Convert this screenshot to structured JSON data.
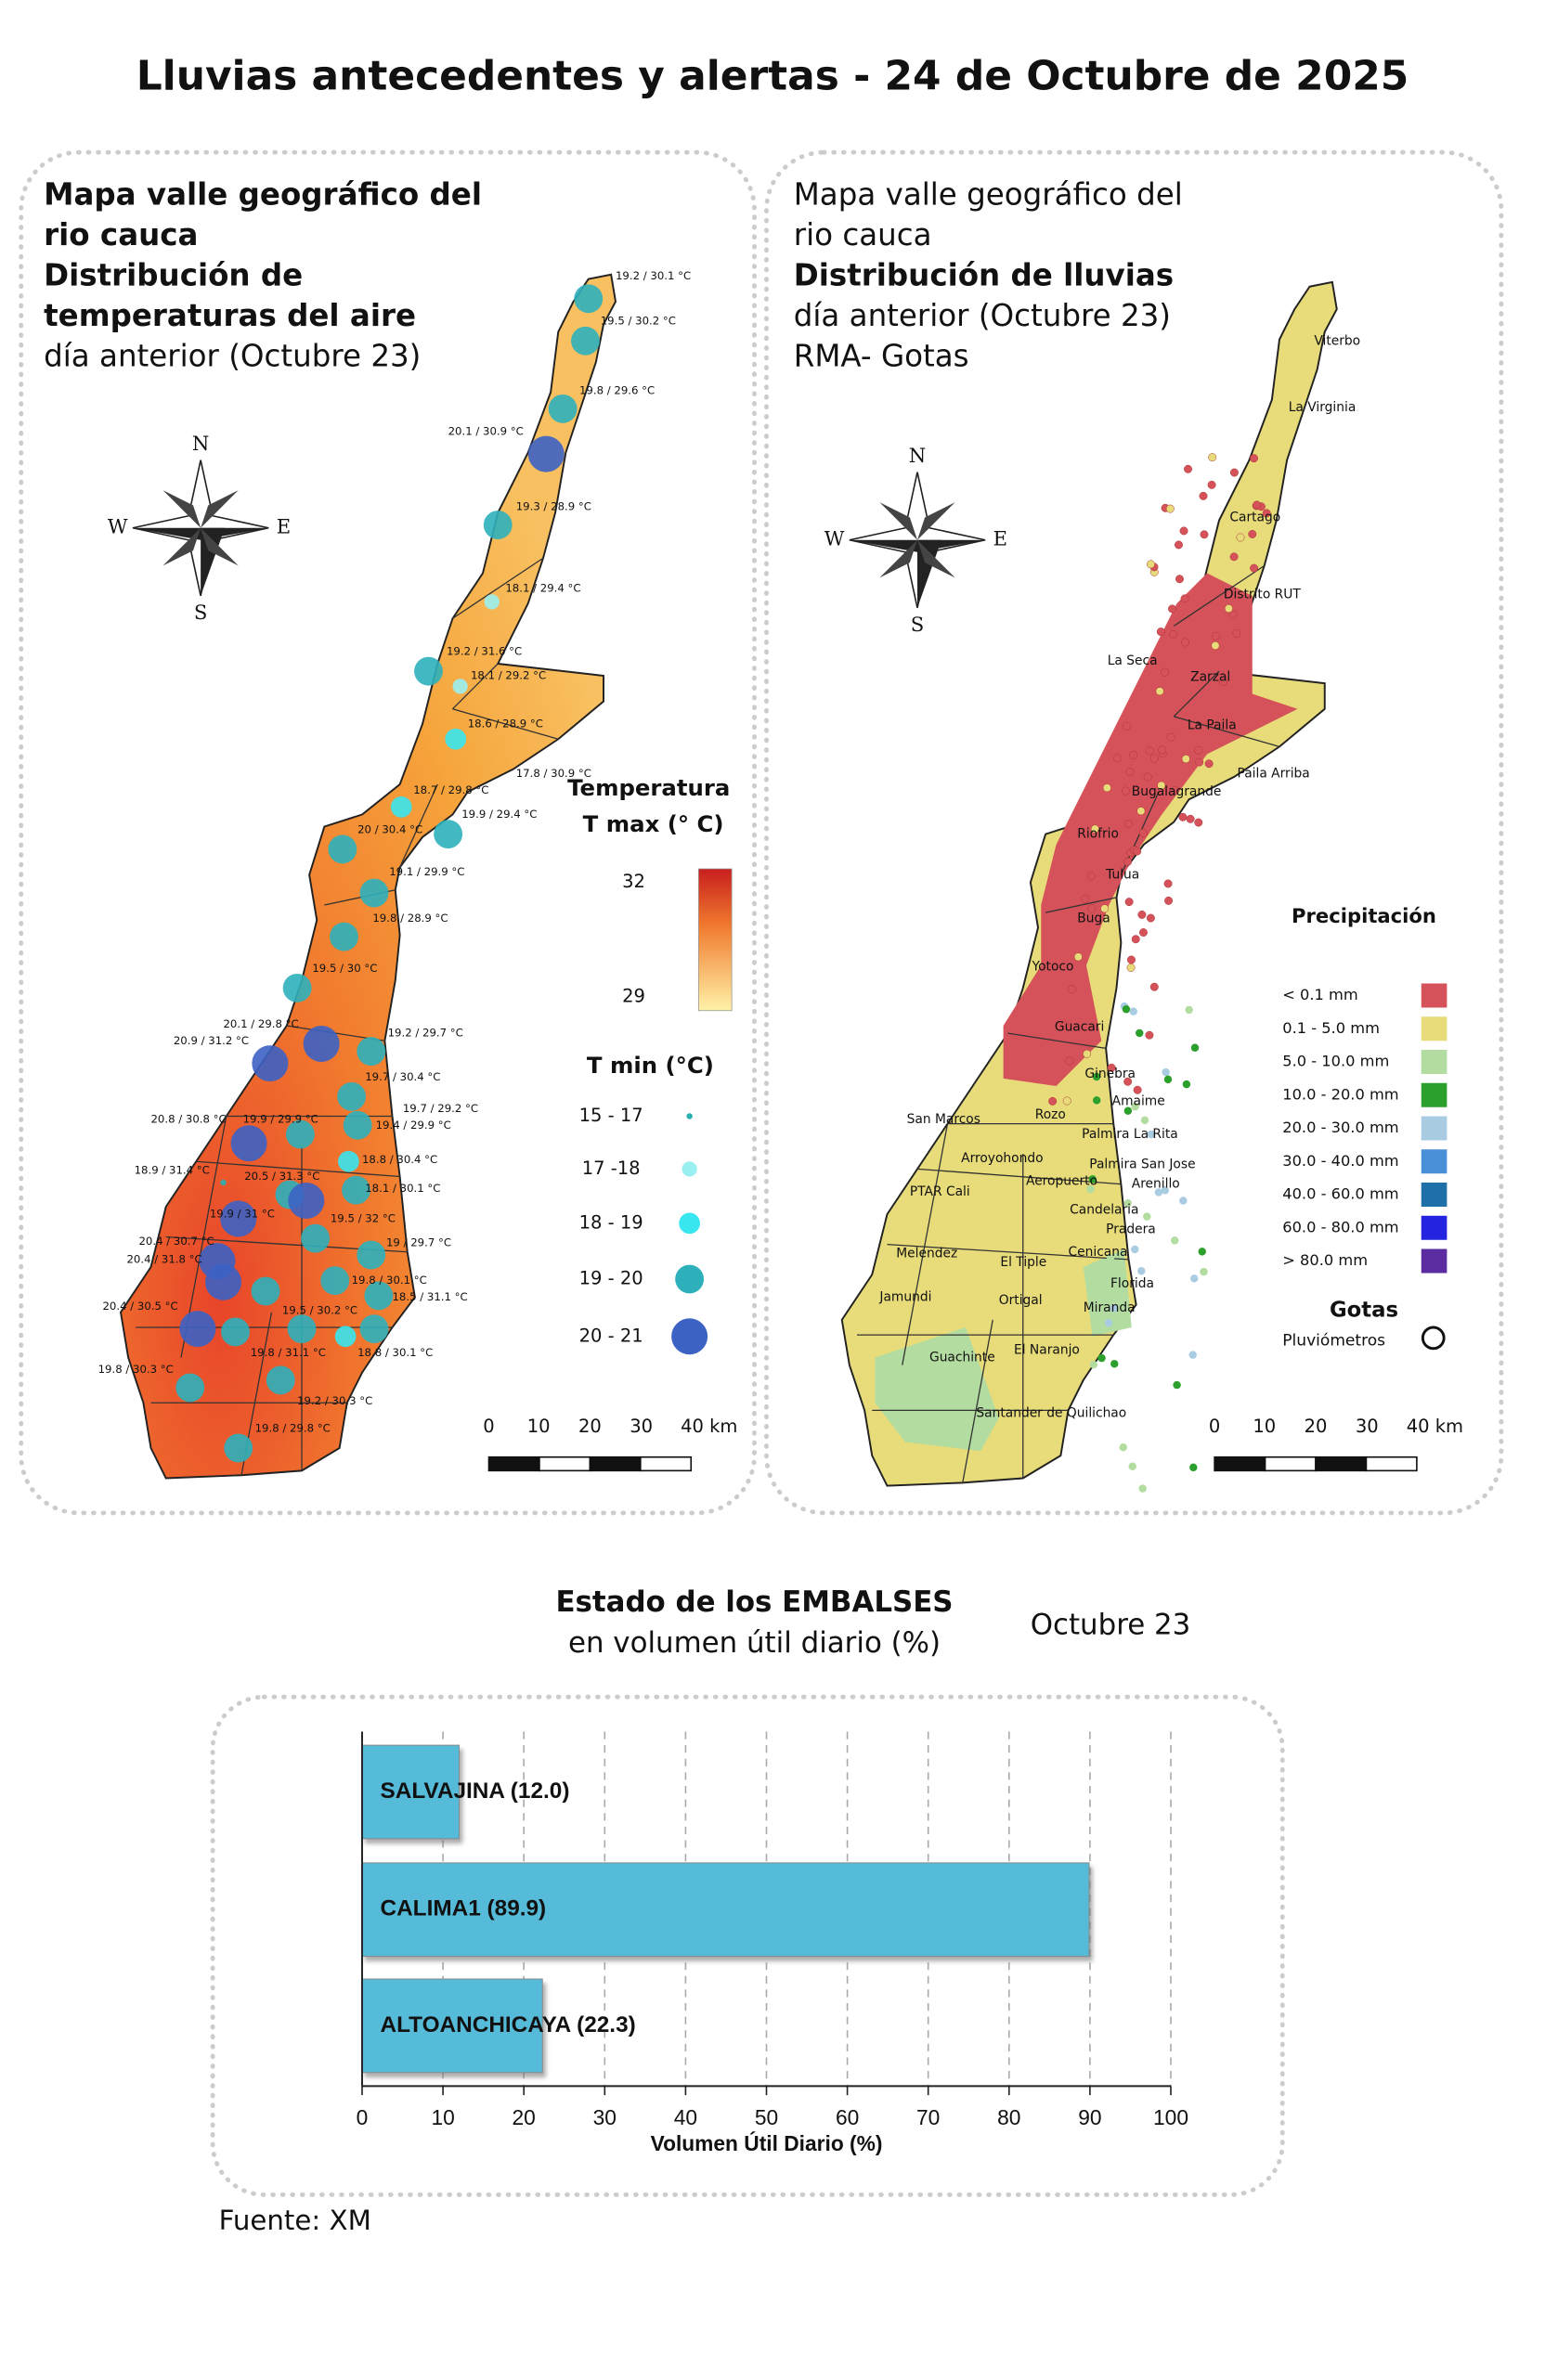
{
  "title": "Lluvias antecedentes y alertas - 24 de Octubre de 2025",
  "temperature_map": {
    "title_lines": [
      "Mapa valle geográfico del",
      "rio cauca",
      "Distribución de",
      "temperaturas del aire",
      "día anterior (Octubre 23)"
    ],
    "compass": [
      "N",
      "W",
      "E",
      "S"
    ],
    "stations": [
      "19.2 / 30.1 °C",
      "19.5 / 30.2 °C",
      "19.8 / 29.6 °C",
      "20.1 / 30.9 °C",
      "19.3 / 28.9 °C",
      "18.1 / 29.4 °C",
      "19.2 / 31.6 °C",
      "18.1 / 29.2 °C",
      "18.6 / 28.9 °C",
      "17.8 / 30.9 °C",
      "18.7 / 29.8 °C",
      "19.9 / 29.4 °C",
      "20 / 30.4 °C",
      "19.1 / 29.9 °C",
      "19.8 / 28.9 °C",
      "19.5 / 30 °C",
      "20.1 / 29.8 °C",
      "20.9 / 31.2 °C",
      "19.2 / 29.7 °C",
      "19.7 / 30.4 °C",
      "19.7 / 29.2 °C",
      "20.8 / 30.8 °C",
      "19.9 / 29.9 °C",
      "19.4 / 29.9 °C",
      "18.8 / 30.4 °C",
      "18.9 / 31.4 °C",
      "20.5 / 31.3 °C",
      "18.1 / 30.1 °C",
      "19.9 / 31 °C",
      "19.5 / 32 °C",
      "19 / 29.7 °C",
      "20.4 / 30.7 °C",
      "20.4 / 31.8 °C",
      "19.8 / 30.1 °C",
      "18.5 / 31.1 °C",
      "20.4 / 30.5 °C",
      "19.5 / 30.2 °C",
      "19.8 / 31.1 °C",
      "18.8 / 30.1 °C",
      "19.8 / 30.3 °C",
      "19.2 / 30.3 °C",
      "19.8 / 29.8 °C"
    ],
    "legend": {
      "title": "Temperatura",
      "tmax_label": "T max (° C)",
      "tmax_max": 32,
      "tmax_min": 29,
      "tmin_label": "T min (°C)",
      "tmin_classes": [
        "15 - 17",
        "17 -18",
        "18 - 19",
        "19 - 20",
        "20 - 21"
      ]
    },
    "scale_labels": [
      "0",
      "10",
      "20",
      "30",
      "40 km"
    ]
  },
  "rain_map": {
    "title_lines": [
      "Mapa valle geográfico del",
      "rio cauca",
      "Distribución de lluvias",
      "día anterior (Octubre 23)",
      "RMA- Gotas"
    ],
    "compass": [
      "N",
      "W",
      "E",
      "S"
    ],
    "towns": [
      "Viterbo",
      "La Virginia",
      "Cartago",
      "Distrito RUT",
      "La Seca",
      "Zarzal",
      "La Paila",
      "Paila Arriba",
      "Bugalagrande",
      "Riofrio",
      "Tulua",
      "Buga",
      "Yotoco",
      "Guacari",
      "Ginebra",
      "Amaime",
      "San Marcos",
      "Rozo",
      "Palmira La Rita",
      "Arroyohondo",
      "Palmira San Jose",
      "Aeropuerto",
      "Arenillo",
      "PTAR Cali",
      "Candelaria",
      "Pradera",
      "Melendez",
      "El Tiple",
      "Cenicana",
      "Florida",
      "Jamundi",
      "Ortigal",
      "Miranda",
      "El Naranjo",
      "Guachinte",
      "Santander de Quilichao"
    ],
    "legend": {
      "title": "Precipitación",
      "classes": [
        {
          "label": "< 0.1 mm",
          "color": "#d6525a"
        },
        {
          "label": "0.1 - 5.0 mm",
          "color": "#e8dc7a"
        },
        {
          "label": "5.0 - 10.0 mm",
          "color": "#b3dca0"
        },
        {
          "label": "10.0 - 20.0 mm",
          "color": "#2ca02c"
        },
        {
          "label": "20.0 - 30.0 mm",
          "color": "#a9cce3"
        },
        {
          "label": "30.0 - 40.0 mm",
          "color": "#4a90d9"
        },
        {
          "label": "40.0 - 60.0 mm",
          "color": "#1f6fa8"
        },
        {
          "label": "60.0 - 80.0 mm",
          "color": "#2424e0"
        },
        {
          "label": "> 80.0 mm",
          "color": "#5b2ca0"
        }
      ],
      "gotas_title": "Gotas",
      "gotas_label": "Pluviómetros"
    },
    "scale_labels": [
      "0",
      "10",
      "20",
      "30",
      "40 km"
    ]
  },
  "chart_data": {
    "type": "bar",
    "orientation": "horizontal",
    "title": "Estado de los EMBALSES",
    "subtitle": "en volumen útil diario (%)",
    "date": "Octubre 23",
    "categories": [
      "SALVAJINA (12.0)",
      "CALIMA1 (89.9)",
      "ALTOANCHICAYA (22.3)"
    ],
    "values": [
      12.0,
      89.9,
      22.3
    ],
    "color": "#56bad9",
    "xlim": [
      0,
      100
    ],
    "xticks": [
      0,
      10,
      20,
      30,
      40,
      50,
      60,
      70,
      80,
      90,
      100
    ],
    "xlabel": "Volumen Útil Diario (%)",
    "grid": true
  },
  "source": "Fuente: XM"
}
